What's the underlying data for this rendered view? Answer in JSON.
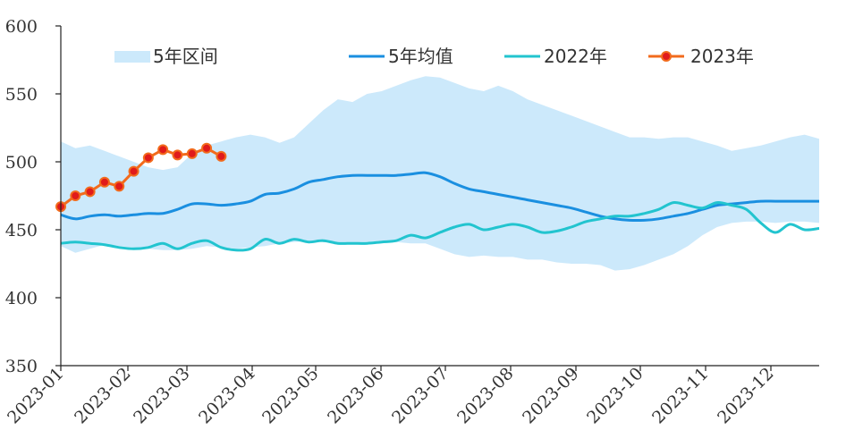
{
  "chart_data": {
    "type": "line",
    "title": "",
    "xlabel": "",
    "ylabel": "",
    "ylim": [
      350,
      600
    ],
    "yticks": [
      350,
      400,
      450,
      500,
      550,
      600
    ],
    "x_tick_labels": [
      "2023-01",
      "2023-02",
      "2023-03",
      "2023-04",
      "2023-05",
      "2023-06",
      "2023-07",
      "2023-08",
      "2023-09",
      "2023-10",
      "2023-11",
      "2023-12"
    ],
    "grid": false,
    "legend_position": "top",
    "legend": [
      {
        "label": "5年区间",
        "kind": "band",
        "color": "#cce9fb"
      },
      {
        "label": "5年均值",
        "kind": "line",
        "color": "#1a8fe0"
      },
      {
        "label": "2022年",
        "kind": "line",
        "color": "#22c4cf"
      },
      {
        "label": "2023年",
        "kind": "line-marker",
        "color": "#f26b1d",
        "marker_color": "#e01b1b"
      }
    ],
    "x_weeks": [
      1,
      2,
      3,
      4,
      5,
      6,
      7,
      8,
      9,
      10,
      11,
      12,
      13,
      14,
      15,
      16,
      17,
      18,
      19,
      20,
      21,
      22,
      23,
      24,
      25,
      26,
      27,
      28,
      29,
      30,
      31,
      32,
      33,
      34,
      35,
      36,
      37,
      38,
      39,
      40,
      41,
      42,
      43,
      44,
      45,
      46,
      47,
      48,
      49,
      50,
      51,
      52,
      53
    ],
    "series": [
      {
        "name": "5年区间",
        "kind": "band",
        "upper": [
          515,
          510,
          512,
          508,
          504,
          500,
          496,
          494,
          496,
          506,
          512,
          515,
          518,
          520,
          518,
          514,
          518,
          528,
          538,
          546,
          544,
          550,
          552,
          556,
          560,
          563,
          562,
          558,
          554,
          552,
          556,
          552,
          546,
          542,
          538,
          534,
          530,
          526,
          522,
          518,
          518,
          517,
          518,
          518,
          515,
          512,
          508,
          510,
          512,
          515,
          518,
          520,
          517
        ],
        "lower": [
          438,
          433,
          436,
          439,
          438,
          437,
          436,
          435,
          435,
          436,
          438,
          437,
          436,
          437,
          438,
          440,
          441,
          442,
          441,
          440,
          440,
          441,
          442,
          441,
          440,
          440,
          436,
          432,
          430,
          431,
          430,
          430,
          428,
          428,
          426,
          425,
          425,
          424,
          420,
          421,
          424,
          428,
          432,
          438,
          446,
          452,
          455,
          456,
          456,
          455,
          456,
          456,
          455
        ]
      },
      {
        "name": "5年均值",
        "kind": "line",
        "values": [
          461,
          458,
          460,
          461,
          460,
          461,
          462,
          462,
          465,
          469,
          469,
          468,
          469,
          471,
          476,
          477,
          480,
          485,
          487,
          489,
          490,
          490,
          490,
          490,
          491,
          492,
          489,
          484,
          480,
          478,
          476,
          474,
          472,
          470,
          468,
          466,
          463,
          460,
          458,
          457,
          457,
          458,
          460,
          462,
          465,
          468,
          469,
          470,
          471,
          471,
          471,
          471,
          471
        ]
      },
      {
        "name": "2022年",
        "kind": "line",
        "values": [
          440,
          441,
          440,
          439,
          437,
          436,
          437,
          440,
          436,
          440,
          442,
          437,
          435,
          436,
          443,
          440,
          443,
          441,
          442,
          440,
          440,
          440,
          441,
          442,
          446,
          444,
          448,
          452,
          454,
          450,
          452,
          454,
          452,
          448,
          449,
          452,
          456,
          458,
          460,
          460,
          462,
          465,
          470,
          468,
          466,
          470,
          468,
          465,
          455,
          448,
          454,
          450,
          451
        ]
      },
      {
        "name": "2023年",
        "kind": "line-marker",
        "values": [
          467,
          475,
          478,
          485,
          482,
          493,
          503,
          509,
          505,
          506,
          510,
          504
        ]
      }
    ]
  }
}
